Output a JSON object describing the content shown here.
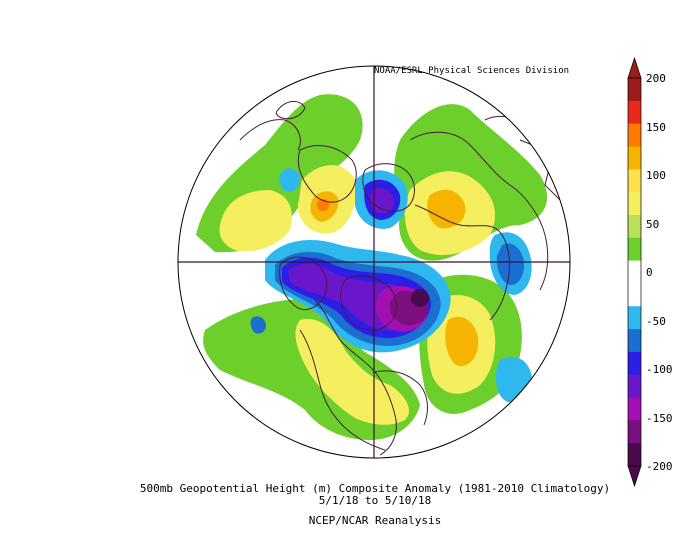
{
  "credit": "NOAA/ESRL Physical Sciences Division",
  "caption": {
    "title": "500mb Geopotential Height (m) Composite Anomaly (1981-2010 Climatology)",
    "dates": "5/1/18  to 5/10/18",
    "source": "NCEP/NCAR Reanalysis"
  },
  "colorbar": {
    "labels": [
      "200",
      "150",
      "100",
      "50",
      "0",
      "-50",
      "-100",
      "-150",
      "-200"
    ],
    "colors": [
      "#9b1c1c",
      "#e8291b",
      "#ff7a00",
      "#f5b400",
      "#ffe04d",
      "#f5ee5f",
      "#b7e05b",
      "#6ccf2c",
      "#ffffff",
      "#ffffff",
      "#2fb8ee",
      "#1a6fd0",
      "#2d1ee6",
      "#6a17cc",
      "#a20fb3",
      "#7a0f80",
      "#4b0a4e"
    ]
  }
}
